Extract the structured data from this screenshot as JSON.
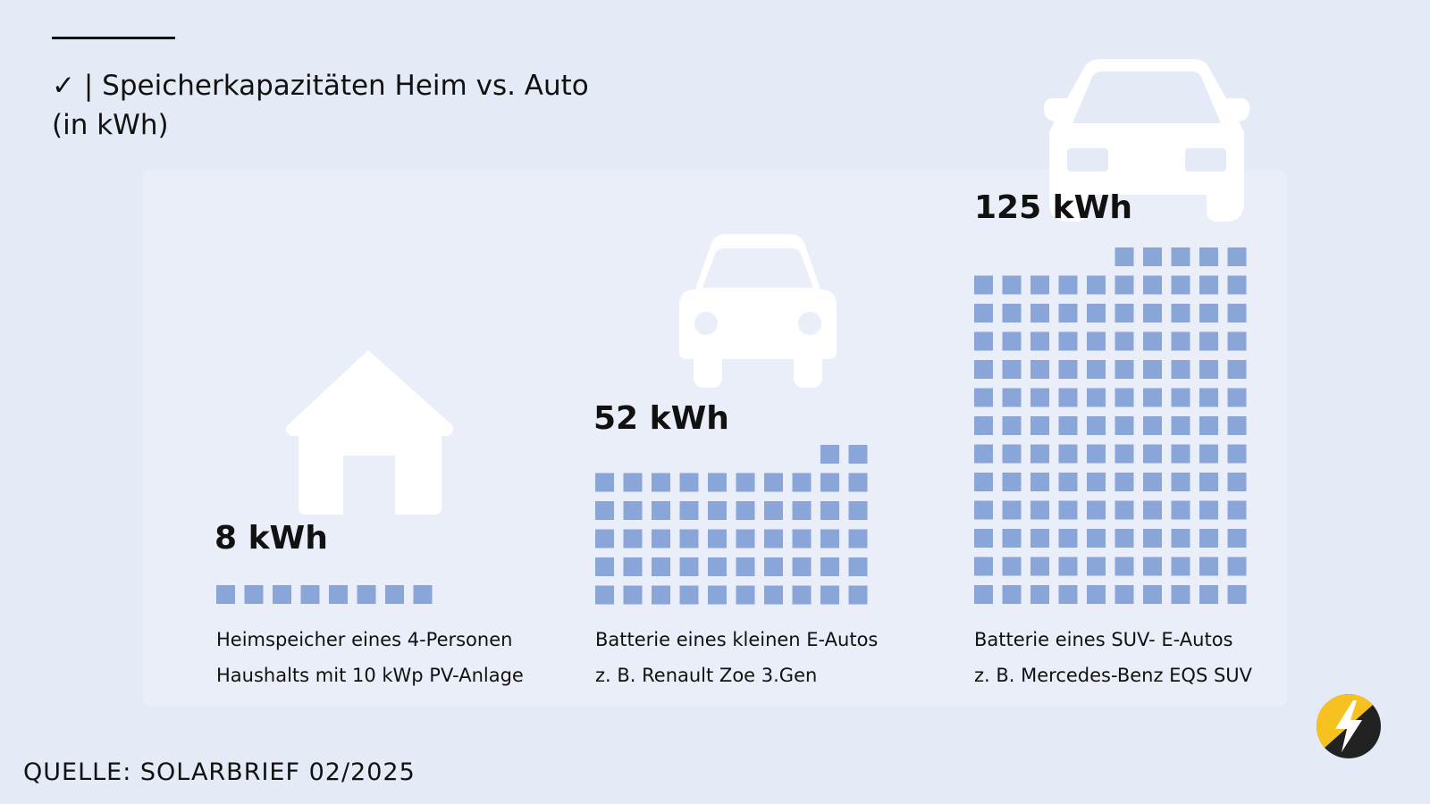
{
  "title": {
    "check": "✓",
    "separator": "|",
    "line1": "Speicherkapazitäten Heim vs. Auto",
    "line2": "(in kWh)"
  },
  "source": "QUELLE: SOLARBRIEF 02/2025",
  "colors": {
    "background": "#e5ebf6",
    "block": "#8aa6d8",
    "icon": "#ffffff",
    "logo_yellow": "#f7c21f",
    "logo_dark": "#222222"
  },
  "chart_data": {
    "type": "bar",
    "unit": "kWh",
    "encoding": "one square per kWh",
    "categories": [
      {
        "icon": "house-icon",
        "value": 8,
        "label": "8 kWh",
        "caption": [
          "Heimspeicher eines 4-Personen",
          "Haushalts mit 10 kWp PV-Anlage"
        ]
      },
      {
        "icon": "car-icon",
        "value": 52,
        "label": "52 kWh",
        "caption": [
          "Batterie eines kleinen E-Autos",
          "z. B. Renault Zoe 3.Gen"
        ]
      },
      {
        "icon": "suv-icon",
        "value": 125,
        "label": "125 kWh",
        "caption": [
          "Batterie eines SUV- E-Autos",
          "z. B. Mercedes-Benz EQS SUV"
        ]
      }
    ]
  }
}
